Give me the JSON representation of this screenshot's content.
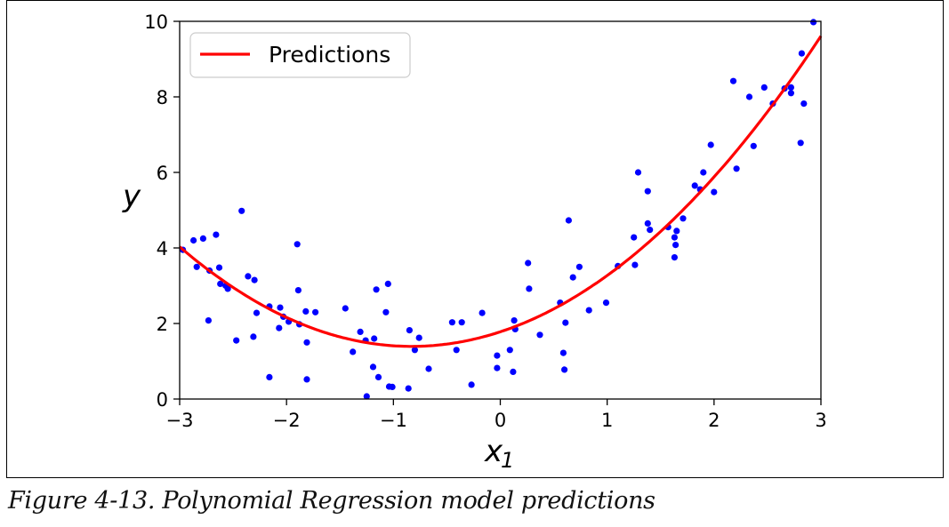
{
  "caption": "Figure 4-13. Polynomial Regression model predictions",
  "chart_data": {
    "type": "scatter",
    "xlabel_main": "x",
    "xlabel_sub": "1",
    "ylabel": "y",
    "xlim": [
      -3,
      3
    ],
    "ylim": [
      0,
      10
    ],
    "xticks": [
      -3,
      -2,
      -1,
      0,
      1,
      2,
      3
    ],
    "xtick_labels": [
      "−3",
      "−2",
      "−1",
      "0",
      "1",
      "2",
      "3"
    ],
    "yticks": [
      0,
      2,
      4,
      6,
      8,
      10
    ],
    "ytick_labels": [
      "0",
      "2",
      "4",
      "6",
      "8",
      "10"
    ],
    "grid": false,
    "legend": {
      "placement": "top-left",
      "entries": [
        {
          "label": "Predictions",
          "color": "#ff0000"
        }
      ]
    },
    "prediction_curve": {
      "name": "Predictions",
      "color": "#ff0000",
      "model": "0.56*x^2 + 0.93*x + 1.78"
    },
    "points": {
      "color": "#0000ff",
      "x": [
        -2.97,
        -2.87,
        -2.84,
        -2.78,
        -2.73,
        -2.72,
        -2.66,
        -2.63,
        -2.62,
        -2.57,
        -2.55,
        -2.47,
        -2.42,
        -2.36,
        -2.31,
        -2.3,
        -2.28,
        -2.16,
        -2.16,
        -2.07,
        -2.06,
        -2.03,
        -1.98,
        -1.9,
        -1.89,
        -1.88,
        -1.82,
        -1.81,
        -1.81,
        -1.73,
        -1.45,
        -1.38,
        -1.31,
        -1.26,
        -1.25,
        -1.19,
        -1.18,
        -1.16,
        -1.14,
        -1.07,
        -1.05,
        -1.04,
        -1.01,
        -0.86,
        -0.85,
        -0.8,
        -0.76,
        -0.67,
        -0.45,
        -0.41,
        -0.36,
        -0.27,
        -0.17,
        -0.03,
        -0.03,
        0.09,
        0.12,
        0.13,
        0.14,
        0.26,
        0.27,
        0.37,
        0.56,
        0.59,
        0.6,
        0.61,
        0.64,
        0.68,
        0.74,
        0.83,
        0.99,
        1.1,
        1.25,
        1.26,
        1.29,
        1.38,
        1.38,
        1.4,
        1.57,
        1.63,
        1.63,
        1.64,
        1.65,
        1.71,
        1.82,
        1.87,
        1.9,
        1.97,
        2.0,
        2.18,
        2.21,
        2.33,
        2.37,
        2.47,
        2.55,
        2.66,
        2.72,
        2.72,
        2.81,
        2.82,
        2.84,
        2.93
      ],
      "y": [
        3.95,
        4.2,
        3.5,
        4.25,
        2.08,
        3.4,
        4.35,
        3.48,
        3.05,
        3.0,
        2.92,
        1.55,
        4.98,
        3.25,
        1.65,
        3.15,
        2.28,
        2.45,
        0.58,
        1.88,
        2.42,
        2.18,
        2.05,
        4.1,
        2.88,
        1.98,
        2.32,
        1.5,
        0.52,
        2.3,
        2.4,
        1.25,
        1.78,
        1.55,
        0.07,
        0.85,
        1.6,
        2.9,
        0.58,
        2.3,
        3.05,
        0.33,
        0.32,
        0.28,
        1.82,
        1.3,
        1.62,
        0.8,
        2.03,
        1.3,
        2.03,
        0.38,
        2.28,
        1.15,
        0.82,
        1.3,
        0.72,
        2.08,
        1.85,
        3.6,
        2.92,
        1.7,
        2.55,
        1.22,
        0.78,
        2.02,
        4.73,
        3.22,
        3.5,
        2.35,
        2.55,
        3.52,
        4.28,
        3.55,
        6.0,
        5.5,
        4.65,
        4.48,
        4.55,
        4.28,
        3.75,
        4.08,
        4.45,
        4.78,
        5.65,
        5.55,
        6.0,
        6.73,
        5.48,
        8.42,
        6.1,
        8.0,
        6.7,
        8.25,
        7.82,
        8.22,
        8.25,
        8.1,
        6.78,
        9.15,
        7.82,
        9.98
      ]
    }
  }
}
